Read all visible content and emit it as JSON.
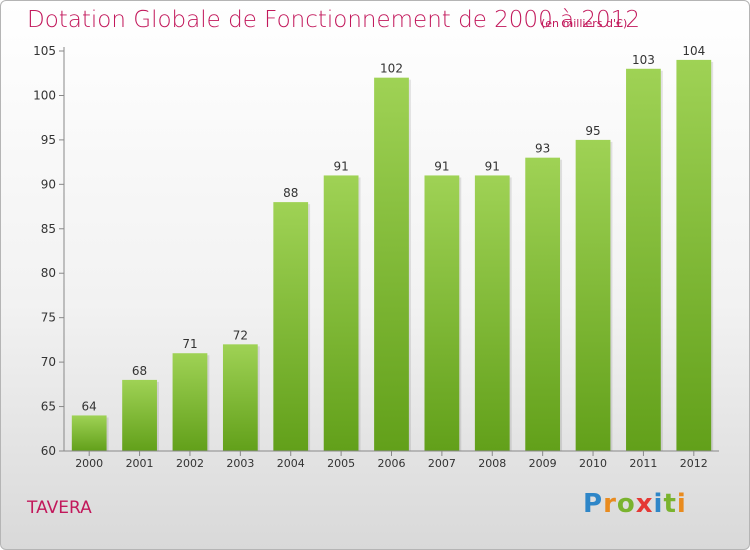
{
  "header": {
    "title": "Dotation Globale de Fonctionnement de 2000 à 2012",
    "unit": "(en milliers d'€)"
  },
  "footer": {
    "commune": "TAVERA",
    "logo_letters": [
      "P",
      "r",
      "o",
      "x",
      "i",
      "t",
      "i"
    ],
    "logo_colors": [
      "#2e86c8",
      "#e98b1e",
      "#7ab32e",
      "#e53935",
      "#2e86c8",
      "#7ab32e",
      "#e98b1e"
    ]
  },
  "chart_data": {
    "type": "bar",
    "title": "Dotation Globale de Fonctionnement de 2000 à 2012",
    "categories": [
      "2000",
      "2001",
      "2002",
      "2003",
      "2004",
      "2005",
      "2006",
      "2007",
      "2008",
      "2009",
      "2010",
      "2011",
      "2012"
    ],
    "values": [
      64,
      68,
      71,
      72,
      88,
      91,
      102,
      91,
      91,
      93,
      95,
      103,
      104
    ],
    "ylim": [
      60,
      105
    ],
    "yticks": [
      60,
      65,
      70,
      75,
      80,
      85,
      90,
      95,
      100,
      105
    ],
    "grid": false,
    "colors": {
      "bar_top": "#9fd255",
      "bar_bottom": "#62a01a",
      "axis": "#888888",
      "text": "#333333"
    }
  }
}
